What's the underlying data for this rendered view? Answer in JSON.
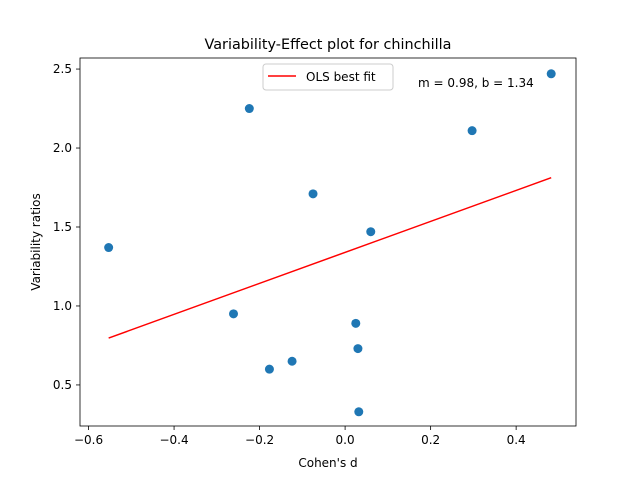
{
  "chart_data": {
    "type": "scatter",
    "title": "Variability-Effect plot for chinchilla",
    "xlabel": "Cohen's d",
    "ylabel": "Variability ratios",
    "xlim": [
      -0.62,
      0.54
    ],
    "ylim": [
      0.24,
      2.57
    ],
    "xticks": [
      -0.6,
      -0.4,
      -0.2,
      0.0,
      0.2,
      0.4
    ],
    "xtick_labels": [
      "−0.6",
      "−0.4",
      "−0.2",
      "0.0",
      "0.2",
      "0.4"
    ],
    "yticks": [
      0.5,
      1.0,
      1.5,
      2.0,
      2.5
    ],
    "ytick_labels": [
      "0.5",
      "1.0",
      "1.5",
      "2.0",
      "2.5"
    ],
    "grid": false,
    "legend_position": "top-center",
    "series": [
      {
        "kind": "points",
        "color": "#1f77b4",
        "x": [
          -0.553,
          -0.261,
          -0.224,
          -0.177,
          -0.124,
          -0.075,
          0.025,
          0.03,
          0.032,
          0.06,
          0.297,
          0.482
        ],
        "y": [
          1.37,
          0.95,
          2.25,
          0.6,
          0.65,
          1.71,
          0.89,
          0.73,
          0.33,
          1.47,
          2.11,
          2.47
        ]
      },
      {
        "kind": "line",
        "name": "OLS best fit",
        "color": "#ff0000",
        "x": [
          -0.553,
          0.482
        ],
        "y": [
          0.797,
          1.812
        ]
      }
    ],
    "annotation": "m = 0.98, b = 1.34"
  }
}
